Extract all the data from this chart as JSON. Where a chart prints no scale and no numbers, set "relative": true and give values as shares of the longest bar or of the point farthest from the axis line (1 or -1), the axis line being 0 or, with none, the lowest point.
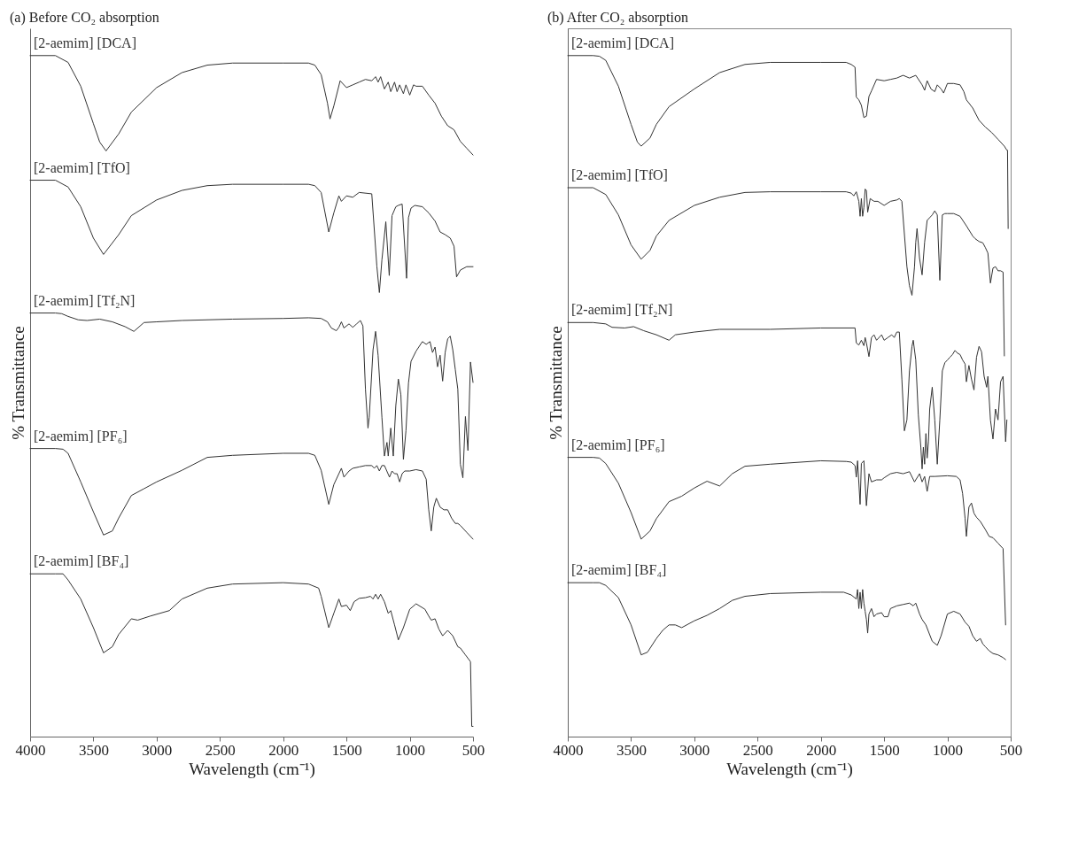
{
  "chart_data": [
    {
      "type": "line",
      "title": "(a) Before CO₂ absorption",
      "xlabel": "Wavelength (cm⁻¹)",
      "ylabel": "% Transmittance",
      "relative": true,
      "xlim": [
        4000,
        500
      ],
      "xticks": [
        4000,
        3500,
        3000,
        2500,
        2000,
        1500,
        1000,
        500
      ],
      "series": [
        {
          "name": "[2-aemim] [DCA]",
          "color": "#333333",
          "x": [
            4000,
            3800,
            3700,
            3600,
            3500,
            3450,
            3400,
            3300,
            3200,
            3000,
            2800,
            2600,
            2400,
            2000,
            1800,
            1750,
            1700,
            1650,
            1630,
            1600,
            1550,
            1500,
            1450,
            1400,
            1350,
            1300,
            1270,
            1250,
            1230,
            1200,
            1170,
            1150,
            1120,
            1100,
            1080,
            1050,
            1030,
            1000,
            970,
            950,
            900,
            850,
            800,
            750,
            700,
            650,
            600,
            550,
            500
          ],
          "values": [
            1,
            1,
            0.99,
            0.955,
            0.9,
            0.873,
            0.86,
            0.885,
            0.917,
            0.953,
            0.975,
            0.986,
            0.989,
            0.989,
            0.989,
            0.986,
            0.972,
            0.93,
            0.907,
            0.926,
            0.963,
            0.953,
            0.957,
            0.961,
            0.965,
            0.963,
            0.969,
            0.961,
            0.969,
            0.951,
            0.961,
            0.947,
            0.961,
            0.947,
            0.957,
            0.944,
            0.957,
            0.942,
            0.957,
            0.955,
            0.955,
            0.942,
            0.93,
            0.911,
            0.897,
            0.891,
            0.874,
            0.864,
            0.854
          ]
        },
        {
          "name": "[2-aemim] [TfO]",
          "color": "#333333",
          "x": [
            4000,
            3800,
            3700,
            3600,
            3500,
            3420,
            3300,
            3200,
            3000,
            2800,
            2600,
            2400,
            2000,
            1800,
            1750,
            1700,
            1640,
            1600,
            1560,
            1540,
            1500,
            1450,
            1400,
            1300,
            1260,
            1240,
            1220,
            1189,
            1162,
            1140,
            1110,
            1090,
            1060,
            1025,
            1010,
            990,
            960,
            900,
            850,
            800,
            760,
            720,
            680,
            650,
            630,
            600,
            550,
            500
          ],
          "values": [
            0.817,
            0.817,
            0.807,
            0.778,
            0.732,
            0.708,
            0.737,
            0.765,
            0.788,
            0.802,
            0.809,
            0.811,
            0.811,
            0.811,
            0.809,
            0.799,
            0.741,
            0.769,
            0.794,
            0.786,
            0.794,
            0.792,
            0.799,
            0.797,
            0.691,
            0.652,
            0.7,
            0.756,
            0.677,
            0.765,
            0.778,
            0.78,
            0.782,
            0.673,
            0.762,
            0.776,
            0.78,
            0.778,
            0.769,
            0.757,
            0.741,
            0.737,
            0.732,
            0.72,
            0.675,
            0.685,
            0.69,
            0.69
          ]
        },
        {
          "name": "[2-aemim] [Tf₂N]",
          "color": "#333333",
          "x": [
            4000,
            3800,
            3750,
            3700,
            3620,
            3550,
            3450,
            3350,
            3250,
            3180,
            3100,
            3000,
            2800,
            2400,
            2000,
            1800,
            1700,
            1650,
            1620,
            1580,
            1560,
            1540,
            1520,
            1480,
            1450,
            1420,
            1390,
            1370,
            1350,
            1330,
            1320,
            1290,
            1270,
            1250,
            1220,
            1200,
            1180,
            1170,
            1150,
            1130,
            1110,
            1090,
            1070,
            1050,
            1030,
            1010,
            990,
            950,
            900,
            870,
            840,
            820,
            800,
            780,
            760,
            740,
            720,
            700,
            680,
            660,
            640,
            620,
            600,
            580,
            560,
            540,
            520,
            500
          ],
          "values": [
            0.622,
            0.622,
            0.621,
            0.617,
            0.612,
            0.611,
            0.613,
            0.609,
            0.602,
            0.595,
            0.608,
            0.609,
            0.611,
            0.613,
            0.614,
            0.615,
            0.614,
            0.609,
            0.6,
            0.596,
            0.601,
            0.609,
            0.6,
            0.606,
            0.601,
            0.606,
            0.611,
            0.603,
            0.51,
            0.453,
            0.469,
            0.568,
            0.595,
            0.56,
            0.469,
            0.412,
            0.432,
            0.412,
            0.453,
            0.412,
            0.486,
            0.525,
            0.502,
            0.407,
            0.449,
            0.519,
            0.551,
            0.566,
            0.58,
            0.576,
            0.58,
            0.564,
            0.572,
            0.543,
            0.56,
            0.522,
            0.564,
            0.584,
            0.588,
            0.568,
            0.539,
            0.51,
            0.4,
            0.38,
            0.47,
            0.42,
            0.55,
            0.52
          ]
        },
        {
          "name": "[2-aemim] [PF₆]",
          "color": "#333333",
          "x": [
            4000,
            3800,
            3740,
            3700,
            3600,
            3500,
            3420,
            3350,
            3300,
            3200,
            3100,
            3000,
            2800,
            2600,
            2400,
            2000,
            1800,
            1750,
            1700,
            1640,
            1600,
            1560,
            1540,
            1520,
            1480,
            1450,
            1400,
            1350,
            1300,
            1280,
            1260,
            1240,
            1220,
            1200,
            1160,
            1140,
            1120,
            1100,
            1080,
            1060,
            1040,
            1000,
            950,
            900,
            870,
            850,
            830,
            810,
            790,
            760,
            730,
            700,
            670,
            640,
            620,
            600,
            550,
            500
          ],
          "values": [
            0.423,
            0.423,
            0.422,
            0.416,
            0.374,
            0.33,
            0.296,
            0.302,
            0.321,
            0.354,
            0.364,
            0.374,
            0.391,
            0.41,
            0.413,
            0.416,
            0.416,
            0.413,
            0.391,
            0.341,
            0.37,
            0.386,
            0.394,
            0.381,
            0.39,
            0.394,
            0.396,
            0.398,
            0.398,
            0.394,
            0.398,
            0.39,
            0.398,
            0.398,
            0.381,
            0.39,
            0.386,
            0.386,
            0.374,
            0.386,
            0.39,
            0.39,
            0.392,
            0.39,
            0.378,
            0.333,
            0.302,
            0.337,
            0.35,
            0.337,
            0.333,
            0.333,
            0.321,
            0.313,
            0.313,
            0.31,
            0.3,
            0.29
          ]
        },
        {
          "name": "[2-aemim] [BF₄]",
          "color": "#333333",
          "x": [
            4000,
            3800,
            3740,
            3700,
            3600,
            3500,
            3420,
            3350,
            3300,
            3200,
            3150,
            3050,
            2900,
            2800,
            2600,
            2400,
            2000,
            1800,
            1720,
            1700,
            1640,
            1600,
            1560,
            1540,
            1500,
            1470,
            1440,
            1400,
            1350,
            1310,
            1290,
            1270,
            1250,
            1230,
            1200,
            1170,
            1150,
            1120,
            1090,
            1050,
            1000,
            950,
            880,
            850,
            830,
            800,
            770,
            740,
            700,
            660,
            620,
            600,
            560,
            520,
            510,
            500
          ],
          "values": [
            0.239,
            0.239,
            0.239,
            0.23,
            0.202,
            0.16,
            0.123,
            0.132,
            0.15,
            0.173,
            0.171,
            0.177,
            0.185,
            0.202,
            0.218,
            0.224,
            0.226,
            0.224,
            0.218,
            0.206,
            0.16,
            0.181,
            0.202,
            0.191,
            0.193,
            0.185,
            0.198,
            0.203,
            0.204,
            0.206,
            0.202,
            0.209,
            0.202,
            0.209,
            0.198,
            0.181,
            0.185,
            0.164,
            0.142,
            0.16,
            0.187,
            0.195,
            0.187,
            0.177,
            0.171,
            0.173,
            0.158,
            0.148,
            0.156,
            0.148,
            0.132,
            0.13,
            0.12,
            0.11,
            0.015,
            0.015
          ]
        }
      ]
    },
    {
      "type": "line",
      "title": "(b) After CO₂ absorption",
      "xlabel": "Wavelength (cm⁻¹)",
      "ylabel": "% Transmittance",
      "relative": true,
      "xlim": [
        4000,
        500
      ],
      "xticks": [
        4000,
        3500,
        3000,
        2500,
        2000,
        1500,
        1000,
        500
      ],
      "series": [
        {
          "name": "[2-aemim] [DCA]",
          "color": "#333333",
          "x": [
            4000,
            3800,
            3750,
            3700,
            3600,
            3500,
            3450,
            3420,
            3350,
            3300,
            3200,
            3000,
            2800,
            2600,
            2400,
            2000,
            1800,
            1760,
            1730,
            1720,
            1700,
            1680,
            1660,
            1640,
            1620,
            1600,
            1560,
            1500,
            1450,
            1400,
            1350,
            1300,
            1250,
            1200,
            1180,
            1160,
            1130,
            1100,
            1080,
            1050,
            1030,
            1000,
            950,
            900,
            870,
            850,
            800,
            750,
            700,
            650,
            600,
            550,
            530,
            525,
            520
          ],
          "values": [
            1,
            1,
            0.999,
            0.993,
            0.955,
            0.899,
            0.873,
            0.867,
            0.879,
            0.899,
            0.925,
            0.951,
            0.975,
            0.987,
            0.99,
            0.99,
            0.99,
            0.987,
            0.983,
            0.939,
            0.935,
            0.927,
            0.909,
            0.911,
            0.94,
            0.948,
            0.965,
            0.963,
            0.965,
            0.967,
            0.971,
            0.967,
            0.971,
            0.957,
            0.949,
            0.963,
            0.951,
            0.947,
            0.957,
            0.951,
            0.945,
            0.959,
            0.959,
            0.957,
            0.947,
            0.935,
            0.923,
            0.905,
            0.895,
            0.887,
            0.877,
            0.867,
            0.861,
            0.861,
            0.746
          ]
        },
        {
          "name": "[2-aemim] [TfO]",
          "color": "#333333",
          "x": [
            4000,
            3800,
            3700,
            3600,
            3500,
            3420,
            3350,
            3300,
            3200,
            3000,
            2800,
            2600,
            2400,
            2000,
            1800,
            1760,
            1740,
            1720,
            1700,
            1690,
            1680,
            1670,
            1660,
            1650,
            1640,
            1630,
            1610,
            1580,
            1550,
            1500,
            1450,
            1400,
            1380,
            1360,
            1320,
            1300,
            1280,
            1260,
            1250,
            1240,
            1220,
            1200,
            1180,
            1160,
            1140,
            1120,
            1100,
            1080,
            1060,
            1040,
            1020,
            1000,
            950,
            900,
            850,
            800,
            780,
            750,
            720,
            700,
            680,
            660,
            640,
            620,
            600,
            580,
            560,
            550
          ],
          "values": [
            0.806,
            0.806,
            0.796,
            0.766,
            0.722,
            0.701,
            0.714,
            0.735,
            0.758,
            0.78,
            0.792,
            0.799,
            0.8,
            0.8,
            0.8,
            0.798,
            0.794,
            0.8,
            0.786,
            0.764,
            0.79,
            0.764,
            0.777,
            0.804,
            0.802,
            0.77,
            0.79,
            0.786,
            0.786,
            0.78,
            0.786,
            0.788,
            0.79,
            0.786,
            0.69,
            0.662,
            0.648,
            0.69,
            0.726,
            0.746,
            0.702,
            0.678,
            0.726,
            0.758,
            0.762,
            0.766,
            0.772,
            0.766,
            0.67,
            0.766,
            0.768,
            0.768,
            0.768,
            0.764,
            0.75,
            0.735,
            0.731,
            0.727,
            0.725,
            0.718,
            0.71,
            0.666,
            0.688,
            0.69,
            0.684,
            0.684,
            0.682,
            0.559
          ]
        },
        {
          "name": "[2-aemim] [Tf₂N]",
          "color": "#333333",
          "x": [
            4000,
            3800,
            3700,
            3650,
            3550,
            3480,
            3400,
            3300,
            3200,
            3150,
            3000,
            2800,
            2400,
            2000,
            1730,
            1720,
            1700,
            1680,
            1660,
            1650,
            1640,
            1620,
            1600,
            1580,
            1560,
            1520,
            1500,
            1470,
            1440,
            1420,
            1400,
            1380,
            1360,
            1340,
            1320,
            1300,
            1280,
            1270,
            1250,
            1230,
            1210,
            1200,
            1190,
            1180,
            1170,
            1160,
            1150,
            1140,
            1120,
            1100,
            1080,
            1060,
            1040,
            1020,
            1000,
            980,
            960,
            940,
            920,
            900,
            880,
            860,
            850,
            830,
            810,
            790,
            770,
            750,
            730,
            710,
            690,
            680,
            660,
            640,
            620,
            600,
            580,
            560,
            540,
            530
          ],
          "values": [
            0.608,
            0.608,
            0.606,
            0.601,
            0.6,
            0.602,
            0.596,
            0.59,
            0.582,
            0.59,
            0.594,
            0.598,
            0.598,
            0.6,
            0.6,
            0.578,
            0.575,
            0.582,
            0.574,
            0.586,
            0.578,
            0.558,
            0.586,
            0.59,
            0.582,
            0.59,
            0.582,
            0.586,
            0.59,
            0.586,
            0.594,
            0.594,
            0.525,
            0.449,
            0.465,
            0.537,
            0.573,
            0.582,
            0.553,
            0.473,
            0.425,
            0.393,
            0.425,
            0.4,
            0.445,
            0.409,
            0.433,
            0.481,
            0.513,
            0.465,
            0.4,
            0.465,
            0.537,
            0.549,
            0.553,
            0.557,
            0.561,
            0.567,
            0.563,
            0.561,
            0.553,
            0.547,
            0.521,
            0.545,
            0.525,
            0.509,
            0.557,
            0.573,
            0.565,
            0.529,
            0.513,
            0.529,
            0.465,
            0.437,
            0.481,
            0.465,
            0.521,
            0.529,
            0.433,
            0.465
          ]
        },
        {
          "name": "[2-aemim] [PF₆]",
          "color": "#333333",
          "x": [
            4000,
            3800,
            3750,
            3700,
            3600,
            3500,
            3420,
            3350,
            3300,
            3200,
            3100,
            3000,
            2900,
            2800,
            2700,
            2600,
            2400,
            2000,
            1800,
            1760,
            1730,
            1720,
            1710,
            1690,
            1680,
            1660,
            1640,
            1620,
            1600,
            1560,
            1520,
            1500,
            1450,
            1400,
            1350,
            1300,
            1260,
            1220,
            1200,
            1180,
            1160,
            1140,
            1100,
            1000,
            930,
            900,
            880,
            860,
            850,
            830,
            810,
            790,
            770,
            740,
            700,
            670,
            640,
            600,
            560,
            540
          ],
          "values": [
            0.41,
            0.41,
            0.409,
            0.401,
            0.372,
            0.329,
            0.29,
            0.302,
            0.32,
            0.345,
            0.353,
            0.365,
            0.375,
            0.368,
            0.386,
            0.397,
            0.4,
            0.405,
            0.404,
            0.403,
            0.398,
            0.381,
            0.405,
            0.341,
            0.401,
            0.405,
            0.339,
            0.386,
            0.374,
            0.377,
            0.377,
            0.38,
            0.386,
            0.388,
            0.386,
            0.389,
            0.374,
            0.386,
            0.374,
            0.382,
            0.36,
            0.382,
            0.382,
            0.383,
            0.382,
            0.377,
            0.357,
            0.32,
            0.294,
            0.337,
            0.343,
            0.328,
            0.322,
            0.316,
            0.304,
            0.294,
            0.292,
            0.284,
            0.276,
            0.164
          ]
        },
        {
          "name": "[2-aemim] [BF₄]",
          "color": "#333333",
          "x": [
            4000,
            3800,
            3750,
            3700,
            3600,
            3500,
            3420,
            3370,
            3300,
            3250,
            3200,
            3150,
            3100,
            3000,
            2900,
            2800,
            2700,
            2600,
            2400,
            2000,
            1900,
            1820,
            1760,
            1720,
            1710,
            1700,
            1690,
            1680,
            1670,
            1660,
            1650,
            1640,
            1630,
            1620,
            1600,
            1580,
            1560,
            1520,
            1500,
            1470,
            1450,
            1400,
            1350,
            1300,
            1270,
            1250,
            1220,
            1200,
            1170,
            1120,
            1080,
            1050,
            1000,
            950,
            900,
            860,
            830,
            800,
            770,
            740,
            720,
            700,
            670,
            640,
            600,
            560,
            540
          ],
          "values": [
            0.226,
            0.226,
            0.226,
            0.222,
            0.204,
            0.164,
            0.12,
            0.124,
            0.144,
            0.156,
            0.164,
            0.164,
            0.16,
            0.17,
            0.178,
            0.188,
            0.2,
            0.206,
            0.21,
            0.212,
            0.212,
            0.212,
            0.208,
            0.202,
            0.216,
            0.188,
            0.212,
            0.188,
            0.216,
            0.196,
            0.184,
            0.172,
            0.152,
            0.18,
            0.188,
            0.176,
            0.18,
            0.182,
            0.176,
            0.176,
            0.188,
            0.192,
            0.194,
            0.196,
            0.192,
            0.196,
            0.18,
            0.172,
            0.164,
            0.14,
            0.134,
            0.148,
            0.18,
            0.184,
            0.18,
            0.168,
            0.162,
            0.148,
            0.14,
            0.144,
            0.136,
            0.132,
            0.126,
            0.122,
            0.12,
            0.116,
            0.113
          ]
        }
      ]
    }
  ]
}
